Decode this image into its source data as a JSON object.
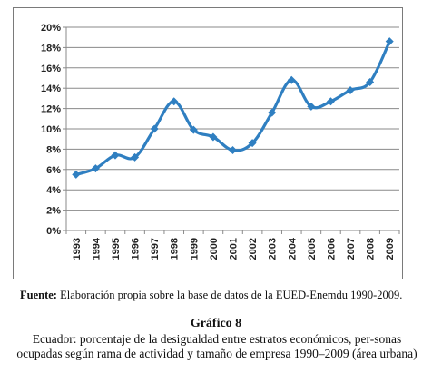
{
  "chart_data": {
    "type": "line",
    "x": [
      "1993",
      "1994",
      "1995",
      "1996",
      "1997",
      "1998",
      "1999",
      "2000",
      "2001",
      "2002",
      "2003",
      "2004",
      "2005",
      "2006",
      "2007",
      "2008",
      "2009"
    ],
    "series": [
      {
        "values": [
          5.5,
          6.1,
          7.4,
          7.2,
          10.0,
          12.7,
          9.9,
          9.2,
          7.9,
          8.6,
          11.6,
          14.8,
          12.2,
          12.7,
          13.8,
          14.6,
          18.6
        ]
      }
    ],
    "ylim": [
      0,
      20
    ],
    "yticks": [
      "0%",
      "2%",
      "4%",
      "6%",
      "8%",
      "10%",
      "12%",
      "14%",
      "16%",
      "18%",
      "20%"
    ],
    "grid": "horizontal",
    "line_color": "#2f7fc1",
    "grid_color": "#8a8a8a"
  },
  "source": {
    "label": "Fuente:",
    "text": " Elaboración propia sobre la base de datos de la EUED-Enemdu 1990-2009."
  },
  "caption": {
    "title": "Gráfico 8",
    "body": "Ecuador: porcentaje de la desigualdad entre estratos económicos, per-sonas ocupadas según rama de actividad y tamaño de empresa 1990–2009 (área urbana)"
  }
}
